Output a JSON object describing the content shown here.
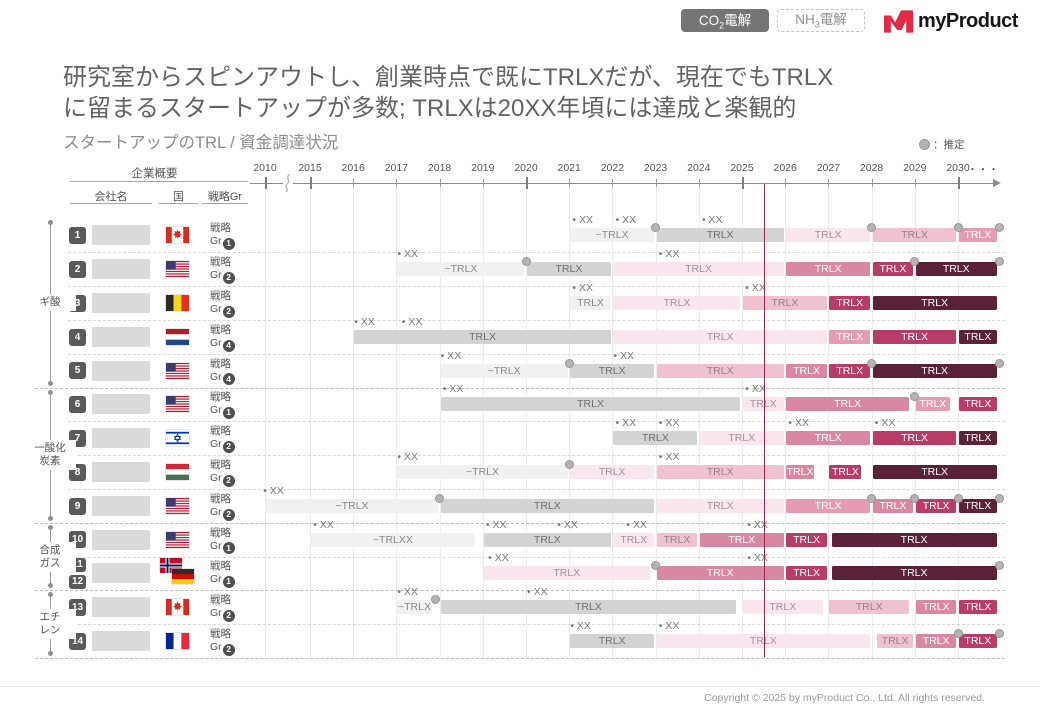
{
  "header": {
    "tabs": [
      {
        "pre": "CO",
        "sub": "2",
        "post": "電解",
        "active": true
      },
      {
        "pre": "NH",
        "sub": "3",
        "post": "電解",
        "active": false
      }
    ],
    "logo_text": "myProduct",
    "logo_color": "#e22a42"
  },
  "title": {
    "line1": "研究室からスピンアウトし、創業時点で既にTRLXだが、現在でもTRLX",
    "line2": "に留まるスタートアップが多数; TRLXは20XX年頃には達成と楽観的"
  },
  "legend": {
    "estimate_label": "：推定"
  },
  "table": {
    "group_header": "企業概要",
    "columns": [
      "会社名",
      "国",
      "戦略Gr"
    ],
    "strategy_line1": "戦略",
    "strategy_line2_prefix": "Gr"
  },
  "footer": {
    "copyright": "Copyright © 2025 by myProduct Co., Ltd.  All rights reserved."
  },
  "chart_data": {
    "type": "gantt",
    "title": "スタートアップのTRL / 資金調達状況",
    "x_axis": {
      "years": [
        2010,
        2015,
        2016,
        2017,
        2018,
        2019,
        2020,
        2021,
        2022,
        2023,
        2024,
        2025,
        2026,
        2027,
        2028,
        2029,
        2030
      ],
      "major": [
        2010,
        2015,
        2020,
        2025,
        2030
      ],
      "ellipsis": "・・・",
      "break_after": 2010,
      "current_year": 2025.5
    },
    "event_label": "• XX",
    "current_line_color": "#9c2750",
    "palette": {
      "g1": {
        "bg": "#f1f1f1",
        "fg": "#8a8a8a"
      },
      "g2": {
        "bg": "#d3d3d3",
        "fg": "#6f6f6f"
      },
      "p1": {
        "bg": "#fbe5ee",
        "fg": "#a3919a"
      },
      "p2": {
        "bg": "#f0c2d1",
        "fg": "#96818b"
      },
      "p3": {
        "bg": "#e59cb3",
        "fg": "#ffffff"
      },
      "p4": {
        "bg": "#d888a2",
        "fg": "#ffffff"
      },
      "p5": {
        "bg": "#b73c68",
        "fg": "#ffffff"
      },
      "p6": {
        "bg": "#5a2139",
        "fg": "#ffffff"
      }
    },
    "categories": [
      {
        "lines": [
          "ギ酸"
        ],
        "row_start": 0,
        "row_end": 4
      },
      {
        "lines": [
          "一酸化",
          "炭素"
        ],
        "row_start": 5,
        "row_end": 8
      },
      {
        "lines": [
          "合成",
          "ガス"
        ],
        "row_start": 9,
        "row_end": 10
      },
      {
        "lines": [
          "エチ",
          "レン"
        ],
        "row_start": 11,
        "row_end": 12
      }
    ],
    "rows": [
      {
        "nums": [
          "1"
        ],
        "countries": [
          "canada"
        ],
        "strategy_gr": "1",
        "bars": [
          [
            2021,
            2023,
            "g1",
            "~TRLX"
          ],
          [
            2023,
            2026,
            "g2",
            "TRLX"
          ],
          [
            2026,
            2028,
            "p1",
            "TRLX"
          ],
          [
            2028,
            2030,
            "p2",
            "TRLX"
          ],
          [
            2030,
            2030.93,
            "p3",
            "TRLX"
          ]
        ],
        "events": [
          2021.05,
          2022.05,
          2024.05
        ],
        "dots": [
          2023,
          2028,
          2030,
          2030.97
        ]
      },
      {
        "nums": [
          "2"
        ],
        "countries": [
          "usa"
        ],
        "strategy_gr": "2",
        "bars": [
          [
            2017,
            2020,
            "g1",
            "~TRLX"
          ],
          [
            2020,
            2022,
            "g2",
            "TRLX"
          ],
          [
            2022,
            2026,
            "p1",
            "TRLX"
          ],
          [
            2026,
            2028,
            "p4",
            "TRLX"
          ],
          [
            2028,
            2029,
            "p5",
            "TRLX"
          ],
          [
            2029,
            2030.93,
            "p6",
            "TRLX"
          ]
        ],
        "events": [
          2017.0,
          2023.05
        ],
        "dots": [
          2020,
          2029,
          2030.97
        ]
      },
      {
        "nums": [
          "3"
        ],
        "countries": [
          "belgium"
        ],
        "strategy_gr": "2",
        "bars": [
          [
            2021,
            2022,
            "g1",
            "TRLX"
          ],
          [
            2022,
            2025,
            "p1",
            "TRLX"
          ],
          [
            2025,
            2027,
            "p2",
            "TRLX"
          ],
          [
            2027,
            2028,
            "p5",
            "TRLX"
          ],
          [
            2028,
            2030.93,
            "p6",
            "TRLX"
          ]
        ],
        "events": [
          2021.05,
          2025.05
        ],
        "dots": []
      },
      {
        "nums": [
          "4"
        ],
        "countries": [
          "netherlands"
        ],
        "strategy_gr": "4",
        "bars": [
          [
            2016,
            2022,
            "g2",
            "TRLX"
          ],
          [
            2022,
            2027,
            "p1",
            "TRLX"
          ],
          [
            2027,
            2028,
            "p3",
            "TRLX"
          ],
          [
            2028,
            2030,
            "p5",
            "TRLX"
          ],
          [
            2030,
            2030.93,
            "p6",
            "TRLX"
          ]
        ],
        "events": [
          2016.0,
          2017.1
        ],
        "dots": []
      },
      {
        "nums": [
          "5"
        ],
        "countries": [
          "usa"
        ],
        "strategy_gr": "4",
        "bars": [
          [
            2018,
            2021,
            "g1",
            "~TRLX"
          ],
          [
            2021,
            2023,
            "g2",
            "TRLX"
          ],
          [
            2023,
            2026,
            "p2",
            "TRLX"
          ],
          [
            2026,
            2027,
            "p4",
            "TRLX"
          ],
          [
            2027,
            2028,
            "p5",
            "TRLX"
          ],
          [
            2028,
            2030.93,
            "p6",
            "TRLX"
          ]
        ],
        "events": [
          2018.0,
          2022.0
        ],
        "dots": [
          2021,
          2028,
          2030.97
        ]
      },
      {
        "nums": [
          "6"
        ],
        "countries": [
          "usa"
        ],
        "strategy_gr": "1",
        "bars": [
          [
            2018,
            2025,
            "g2",
            "TRLX"
          ],
          [
            2025,
            2026,
            "p1",
            "TRLX"
          ],
          [
            2026,
            2028.9,
            "p4",
            "TRLX"
          ],
          [
            2029,
            2029.85,
            "p3",
            "TRLX"
          ],
          [
            2030,
            2030.93,
            "p5",
            "TRLX"
          ]
        ],
        "events": [
          2018.05,
          2025.05
        ],
        "dots": [
          2029
        ]
      },
      {
        "nums": [
          "7"
        ],
        "countries": [
          "israel"
        ],
        "strategy_gr": "2",
        "bars": [
          [
            2022,
            2024,
            "g2",
            "TRLX"
          ],
          [
            2024,
            2026,
            "p1",
            "TRLX"
          ],
          [
            2026,
            2028,
            "p4",
            "TRLX"
          ],
          [
            2028,
            2030,
            "p5",
            "TRLX"
          ],
          [
            2030,
            2030.93,
            "p6",
            "TRLX"
          ]
        ],
        "events": [
          2022.05,
          2023.05,
          2026.05,
          2028.05
        ],
        "dots": []
      },
      {
        "nums": [
          "8"
        ],
        "countries": [
          "hungary"
        ],
        "strategy_gr": "2",
        "bars": [
          [
            2017,
            2021,
            "g1",
            "~TRLX"
          ],
          [
            2021,
            2023,
            "p1",
            "TRLX"
          ],
          [
            2023,
            2026,
            "p2",
            "TRLX"
          ],
          [
            2026,
            2026.7,
            "p4",
            "TRLX"
          ],
          [
            2027,
            2027.8,
            "p5",
            "TRLX"
          ],
          [
            2028,
            2030.93,
            "p6",
            "TRLX"
          ]
        ],
        "events": [
          2017.0,
          2023.05
        ],
        "dots": [
          2021
        ]
      },
      {
        "nums": [
          "9"
        ],
        "countries": [
          "usa"
        ],
        "strategy_gr": "2",
        "bars": [
          [
            2010,
            2018,
            "g1",
            "~TRLX"
          ],
          [
            2018,
            2023,
            "g2",
            "TRLX"
          ],
          [
            2023,
            2026,
            "p1",
            "TRLX"
          ],
          [
            2026,
            2028,
            "p3",
            "TRLX"
          ],
          [
            2028,
            2029,
            "p4",
            "TRLX"
          ],
          [
            2029,
            2030,
            "p5",
            "TRLX"
          ],
          [
            2030,
            2030.93,
            "p6",
            "TRLX"
          ]
        ],
        "events": [
          2009.7
        ],
        "dots": [
          2018,
          2028,
          2029,
          2030,
          2030.97
        ]
      },
      {
        "nums": [
          "10"
        ],
        "countries": [
          "usa"
        ],
        "strategy_gr": "1",
        "bars": [
          [
            2015,
            2018.85,
            "g1",
            "~TRLXX"
          ],
          [
            2019,
            2022,
            "g2",
            "TRLX"
          ],
          [
            2022,
            2023,
            "p1",
            "TRLX"
          ],
          [
            2023,
            2024,
            "p2",
            "TRLX"
          ],
          [
            2024,
            2026,
            "p4",
            "TRLX"
          ],
          [
            2026,
            2027,
            "p5",
            "TRLX"
          ],
          [
            2027.05,
            2030.93,
            "p6",
            "TRLX"
          ]
        ],
        "events": [
          2015.05,
          2019.05,
          2020.7,
          2022.3,
          2025.1
        ],
        "dots": []
      },
      {
        "nums": [
          "11",
          "12"
        ],
        "countries": [
          "norway",
          "germany"
        ],
        "strategy_gr": "1",
        "bars": [
          [
            2019,
            2022.9,
            "p1",
            "TRLX"
          ],
          [
            2023,
            2026,
            "p4",
            "TRLX"
          ],
          [
            2026,
            2027,
            "p5",
            "TRLX"
          ],
          [
            2027.05,
            2030.93,
            "p6",
            "TRLX"
          ]
        ],
        "events": [
          2019.1,
          2025.1
        ],
        "dots": [
          2023,
          2030.97
        ]
      },
      {
        "nums": [
          "13"
        ],
        "countries": [
          "canada"
        ],
        "strategy_gr": "2",
        "bars": [
          [
            2017,
            2017.85,
            "g1",
            "~TRLX"
          ],
          [
            2018,
            2024.9,
            "g2",
            "TRLX"
          ],
          [
            2025,
            2026.9,
            "p1",
            "TRLX"
          ],
          [
            2027,
            2028.9,
            "p2",
            "TRLX"
          ],
          [
            2029,
            2030,
            "p4",
            "TRLX"
          ],
          [
            2030,
            2030.93,
            "p5",
            "TRLX"
          ]
        ],
        "events": [
          2017.0,
          2020.0
        ],
        "dots": [
          2017.9
        ]
      },
      {
        "nums": [
          "14"
        ],
        "countries": [
          "france"
        ],
        "strategy_gr": "2",
        "bars": [
          [
            2021,
            2023,
            "g2",
            "TRLX"
          ],
          [
            2023,
            2028,
            "p1",
            "TRLX"
          ],
          [
            2028.1,
            2029,
            "p2",
            "TRLX"
          ],
          [
            2029,
            2030,
            "p4",
            "TRLX"
          ],
          [
            2030,
            2030.93,
            "p5",
            "TRLX"
          ]
        ],
        "events": [
          2021.0,
          2023.05
        ],
        "dots": [
          2030,
          2030.97
        ]
      }
    ]
  }
}
